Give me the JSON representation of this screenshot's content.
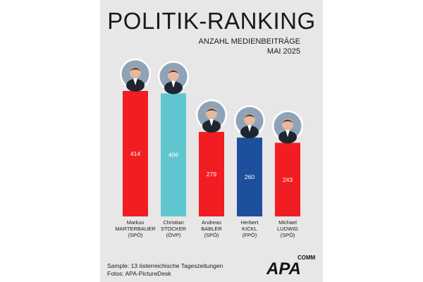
{
  "chart_data": {
    "type": "bar",
    "title": "POLITIK-RANKING",
    "subtitle": [
      "ANZAHL MEDIENBEITRÄGE",
      "MAI 2025"
    ],
    "categories": [
      [
        "Markus",
        "MARTERBAUER",
        "(SPÖ)"
      ],
      [
        "Christian",
        "STOCKER",
        "(ÖVP)"
      ],
      [
        "Andreas",
        "BABLER",
        "(SPÖ)"
      ],
      [
        "Herbert",
        "KICKL",
        "(FPÖ)"
      ],
      [
        "Michael",
        "LUDWIG",
        "(SPÖ)"
      ]
    ],
    "values": [
      414,
      406,
      279,
      260,
      243
    ],
    "colors": [
      "#f21d23",
      "#5fc6cf",
      "#f21d23",
      "#1e4f9c",
      "#f21d23"
    ],
    "ylim": [
      0,
      414
    ],
    "grid": false,
    "legend": "none"
  },
  "footer": {
    "sample": "Sample: 13 österreichische Tageszeitungen",
    "photos": "Fotos: APA-PictureDesk"
  },
  "logo": {
    "main": "APA",
    "sup": "COMM"
  }
}
